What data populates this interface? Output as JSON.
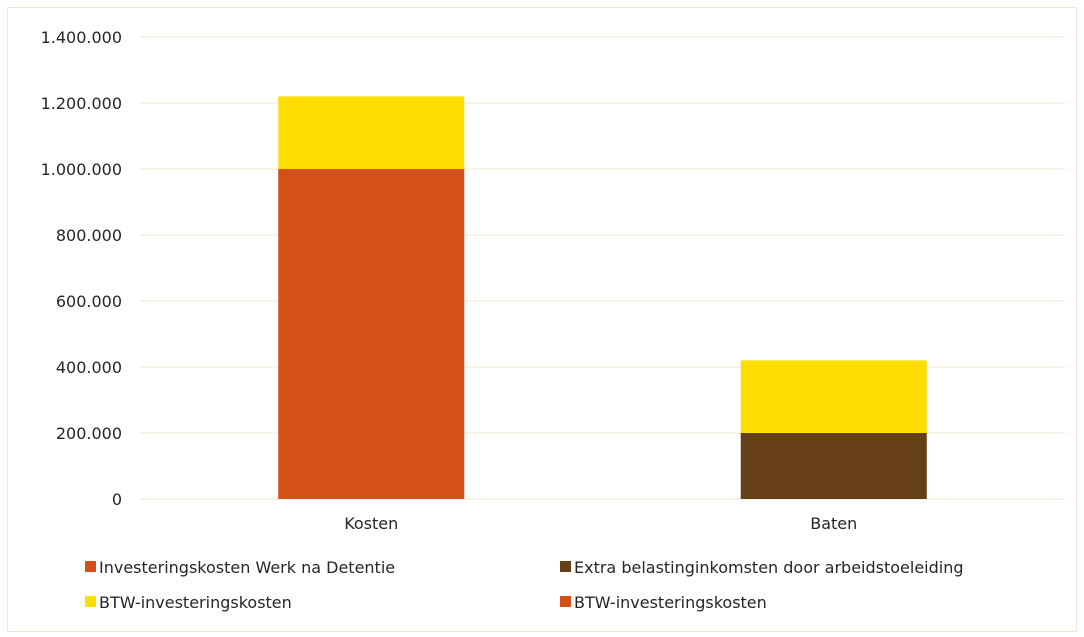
{
  "chart_data": {
    "type": "bar",
    "stacked": true,
    "categories": [
      "Kosten",
      "Baten"
    ],
    "series": [
      {
        "name": "Investeringskosten Werk na Detentie",
        "values": [
          1000000,
          0
        ],
        "color": "#d55019"
      },
      {
        "name": "BTW-investeringskosten",
        "values": [
          220000,
          0
        ],
        "color": "#ffdd00"
      },
      {
        "name": "Extra belastinginkomsten door arbeidstoeleiding",
        "values": [
          0,
          200000
        ],
        "color": "#673f17"
      },
      {
        "name": "BTW-investeringskosten",
        "values": [
          0,
          220000
        ],
        "color": "#ffdd00"
      }
    ],
    "ylim": [
      0,
      1400000
    ],
    "yticks": [
      0,
      200000,
      400000,
      600000,
      800000,
      1000000,
      1200000,
      1400000
    ],
    "ytick_labels": [
      "0",
      "200.000",
      "400.000",
      "600.000",
      "800.000",
      "1.000.000",
      "1.200.000",
      "1.400.000"
    ],
    "grid": true,
    "legend_position": "bottom",
    "legend": [
      {
        "label": "Investeringskosten Werk na Detentie",
        "color": "#d55019"
      },
      {
        "label": "Extra belastinginkomsten door arbeidstoeleiding",
        "color": "#673f17"
      },
      {
        "label": "BTW-investeringskosten",
        "color": "#ffdd00"
      },
      {
        "label": "BTW-investeringskosten",
        "color": "#d55019"
      }
    ],
    "gridline_color": "#f2e4d2"
  }
}
